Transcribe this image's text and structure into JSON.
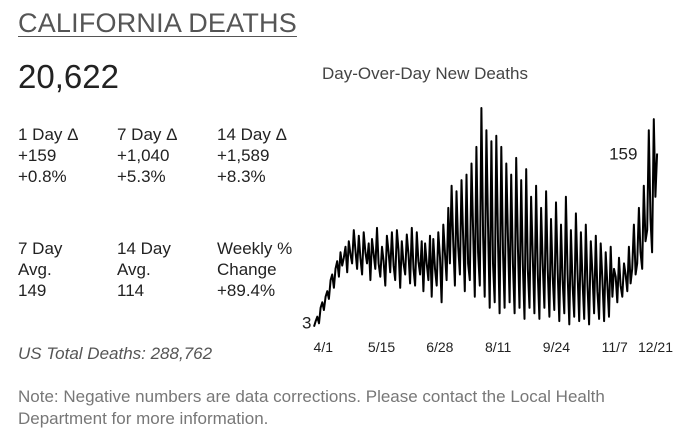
{
  "title": "CALIFORNIA DEATHS",
  "total_deaths": "20,622",
  "stats": [
    {
      "label": "1 Day Δ",
      "value": "+159",
      "percent": "+0.8%"
    },
    {
      "label": "7 Day Δ",
      "value": "+1,040",
      "percent": "+5.3%"
    },
    {
      "label": "14 Day Δ",
      "value": "+1,589",
      "percent": "+8.3%"
    }
  ],
  "averages": [
    {
      "label_line1": "7 Day",
      "label_line2": "Avg.",
      "value": "149"
    },
    {
      "label_line1": "14 Day",
      "label_line2": "Avg.",
      "value": "114"
    },
    {
      "label_line1": "Weekly %",
      "label_line2": "Change",
      "value": "+89.4%"
    }
  ],
  "us_total": "US Total Deaths: 288,762",
  "note": "Note: Negative numbers are data corrections. Please contact the Local Health Department for more information.",
  "chart_data": {
    "type": "line",
    "title": "Day-Over-Day New Deaths",
    "x_start": "2020-03-25",
    "x_end": "2020-12-09",
    "x_tick_labels": [
      "4/1",
      "5/15",
      "6/28",
      "8/11",
      "9/24",
      "11/7",
      "12/21"
    ],
    "y_range": [
      0,
      200
    ],
    "start_label": "3",
    "end_label": "159",
    "series": [
      {
        "color": "#000000",
        "values": [
          3,
          8,
          12,
          6,
          20,
          25,
          18,
          30,
          35,
          28,
          45,
          50,
          38,
          55,
          62,
          48,
          70,
          58,
          65,
          75,
          52,
          80,
          68,
          60,
          90,
          72,
          55,
          85,
          65,
          50,
          88,
          70,
          60,
          78,
          45,
          82,
          68,
          55,
          92,
          60,
          48,
          75,
          62,
          40,
          85,
          70,
          52,
          88,
          58,
          45,
          90,
          72,
          38,
          80,
          60,
          50,
          86,
          68,
          42,
          92,
          55,
          40,
          88,
          62,
          50,
          80,
          35,
          78,
          60,
          45,
          85,
          30,
          82,
          55,
          40,
          88,
          65,
          25,
          95,
          70,
          45,
          110,
          60,
          130,
          80,
          40,
          125,
          75,
          50,
          135,
          82,
          35,
          140,
          60,
          45,
          150,
          90,
          30,
          165,
          70,
          40,
          200,
          85,
          30,
          180,
          95,
          20,
          170,
          60,
          25,
          175,
          80,
          15,
          165,
          70,
          20,
          150,
          85,
          25,
          140,
          60,
          15,
          155,
          75,
          20,
          135,
          60,
          10,
          145,
          55,
          20,
          120,
          65,
          15,
          130,
          50,
          10,
          110,
          60,
          20,
          125,
          55,
          12,
          100,
          48,
          18,
          115,
          52,
          8,
          95,
          45,
          15,
          120,
          50,
          5,
          90,
          40,
          12,
          105,
          52,
          8,
          88,
          45,
          10,
          95,
          40,
          5,
          80,
          50,
          15,
          85,
          35,
          10,
          78,
          45,
          8,
          70,
          40,
          12,
          75,
          30,
          55,
          48,
          25,
          65,
          40,
          30,
          60,
          50,
          35,
          75,
          42,
          55,
          95,
          50,
          60,
          110,
          70,
          55,
          130,
          80,
          90,
          180,
          100,
          70,
          190,
          120,
          159
        ]
      }
    ]
  }
}
